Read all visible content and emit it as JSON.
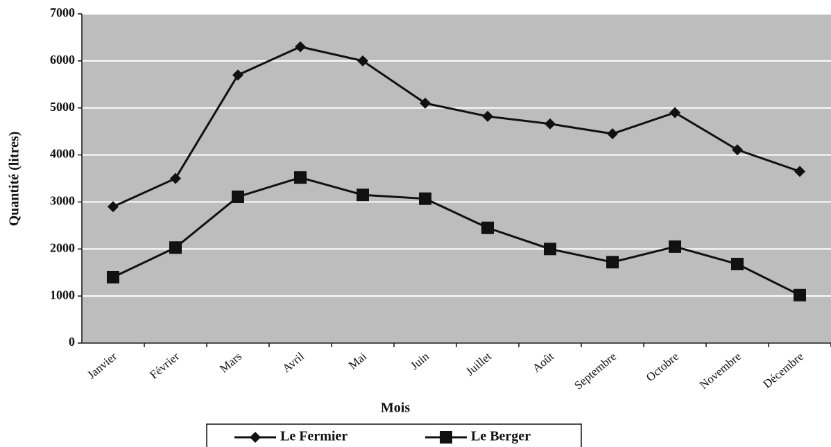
{
  "chart_data": {
    "type": "line",
    "x_label": "Mois",
    "y_label": "Quantité (litres)",
    "categories": [
      "Janvier",
      "Février",
      "Mars",
      "Avril",
      "Mai",
      "Juin",
      "Juillet",
      "Août",
      "Septembre",
      "Octobre",
      "Novembre",
      "Décembre"
    ],
    "series": [
      {
        "name": "Le Fermier",
        "color": "#111111",
        "marker": "diamond",
        "values": [
          2900,
          3500,
          5700,
          6300,
          6000,
          5100,
          4820,
          4660,
          4450,
          4900,
          4110,
          3650
        ]
      },
      {
        "name": "Le Berger",
        "color": "#111111",
        "marker": "square",
        "values": [
          1400,
          2030,
          3110,
          3520,
          3150,
          3070,
          2450,
          2000,
          1720,
          2050,
          1680,
          1020
        ]
      }
    ],
    "ylim": [
      0,
      7000
    ],
    "yticks": [
      0,
      1000,
      2000,
      3000,
      4000,
      5000,
      6000,
      7000
    ],
    "grid": true,
    "legend": "bottom",
    "background": "#bdbdbd"
  }
}
